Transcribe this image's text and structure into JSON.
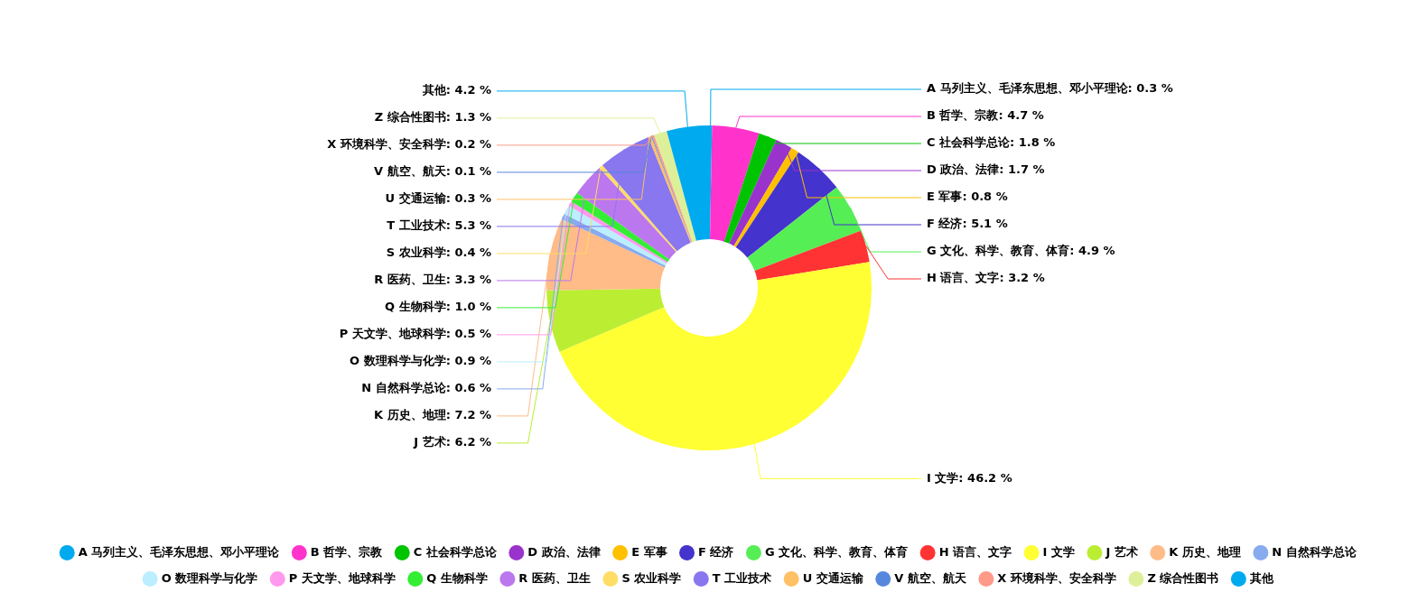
{
  "chart_data": {
    "type": "donut",
    "categories": [
      "A 马列主义、毛泽东思想、邓小平理论",
      "B 哲学、宗教",
      "C 社会科学总论",
      "D 政治、法律",
      "E 军事",
      "F 经济",
      "G 文化、科学、教育、体育",
      "H 语言、文字",
      "I 文学",
      "J 艺术",
      "K 历史、地理",
      "N 自然科学总论",
      "O 数理科学与化学",
      "P 天文学、地球科学",
      "Q 生物科学",
      "R 医药、卫生",
      "S 农业科学",
      "T 工业技术",
      "U 交通运输",
      "V 航空、航天",
      "X 环境科学、安全科学",
      "Z 综合性图书",
      "其他"
    ],
    "values": [
      0.3,
      4.7,
      1.8,
      1.7,
      0.8,
      5.1,
      4.9,
      3.2,
      46.2,
      6.2,
      7.2,
      0.6,
      0.9,
      0.5,
      1.0,
      3.3,
      0.4,
      5.3,
      0.3,
      0.1,
      0.2,
      1.3,
      4.2
    ],
    "value_labels": [
      ": 0.3 %",
      ": 4.7 %",
      ": 1.8 %",
      ": 1.7 %",
      ": 0.8 %",
      ": 5.1 %",
      ": 4.9 %",
      ": 3.2 %",
      ": 46.2 %",
      ": 6.2 %",
      ": 7.2 %",
      ": 0.6 %",
      ": 0.9 %",
      ": 0.5 %",
      ": 1.0 %",
      ": 3.3 %",
      ": 0.4 %",
      ": 5.3 %",
      ": 0.3 %",
      ": 0.1 %",
      ": 0.2 %",
      ": 1.3 %",
      ": 4.2 %"
    ],
    "colors": [
      "#00aaee",
      "#ff33cc",
      "#00c400",
      "#9933cc",
      "#ffc000",
      "#4433cc",
      "#55ee55",
      "#ff3333",
      "#ffff33",
      "#bbee33",
      "#ffbb88",
      "#88aaee",
      "#bbeeff",
      "#ff99ee",
      "#33ee33",
      "#bb77ee",
      "#ffdd66",
      "#8877ee",
      "#ffc066",
      "#5588dd",
      "#ff9988",
      "#ddf099",
      "#00aaee"
    ],
    "data_labels": true,
    "legend": "bottom"
  }
}
